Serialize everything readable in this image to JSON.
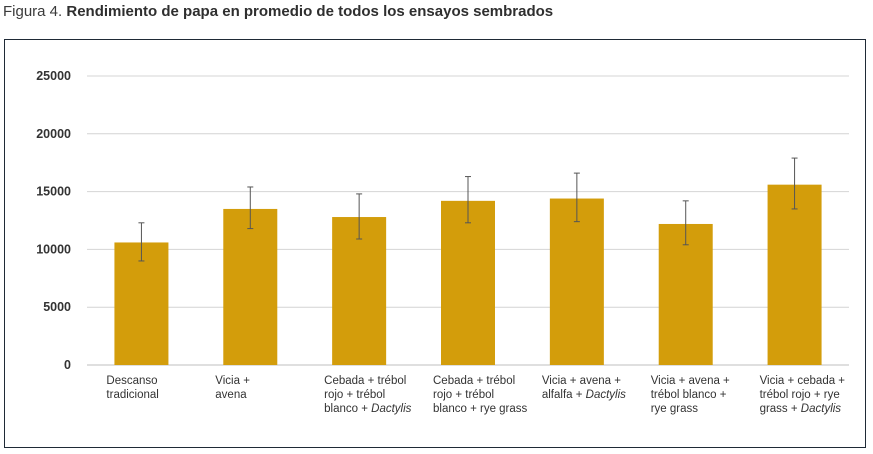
{
  "figure": {
    "prefix": "Figura 4.",
    "title": "Rendimiento de papa en promedio de todos los ensayos sembrados"
  },
  "chart_data": {
    "type": "bar",
    "title": "Rendimiento de papa en promedio de todos los ensayos sembrados",
    "xlabel": "",
    "ylabel": "",
    "ylim": [
      0,
      25000
    ],
    "yticks": [
      0,
      5000,
      10000,
      15000,
      20000,
      25000
    ],
    "grid": true,
    "legend": "none",
    "bar_color": "#D39D0B",
    "error_color": "#555555",
    "categories": [
      [
        {
          "t": "Descanso"
        },
        {
          "t": "tradicional"
        }
      ],
      [
        {
          "t": "Vicia +"
        },
        {
          "t": "avena"
        }
      ],
      [
        {
          "t": "Cebada + trébol"
        },
        {
          "t": "rojo + trébol"
        },
        {
          "t": "blanco + ",
          "i": "Dactylis"
        }
      ],
      [
        {
          "t": "Cebada + trébol"
        },
        {
          "t": "rojo + trébol"
        },
        {
          "t": "blanco + rye grass"
        }
      ],
      [
        {
          "t": "Vicia + avena +"
        },
        {
          "t": "alfalfa + ",
          "i": "Dactylis"
        }
      ],
      [
        {
          "t": "Vicia + avena +"
        },
        {
          "t": "trébol blanco +"
        },
        {
          "t": "rye grass"
        }
      ],
      [
        {
          "t": "Vicia + cebada +"
        },
        {
          "t": "trébol rojo + rye"
        },
        {
          "t": "grass + ",
          "i": "Dactylis"
        }
      ]
    ],
    "values": [
      10600,
      13500,
      12800,
      14200,
      14400,
      12200,
      15600
    ],
    "error_low": [
      9000,
      11800,
      10900,
      12300,
      12400,
      10400,
      13500
    ],
    "error_high": [
      12300,
      15400,
      14800,
      16300,
      16600,
      14200,
      17900
    ]
  }
}
